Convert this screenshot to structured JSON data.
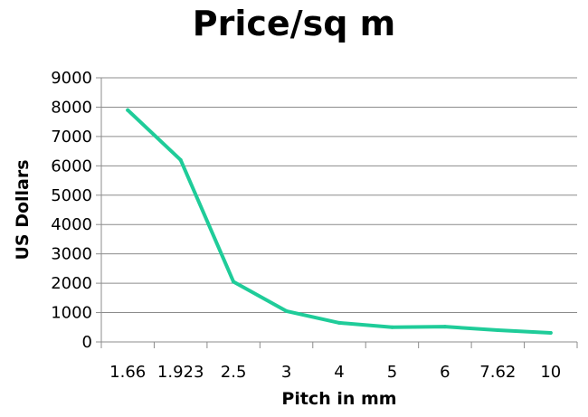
{
  "chart_data": {
    "type": "line",
    "title": "Price/sq m",
    "xlabel": "Pitch in mm",
    "ylabel": "US Dollars",
    "categories": [
      "1.66",
      "1.923",
      "2.5",
      "3",
      "4",
      "5",
      "6",
      "7.62",
      "10"
    ],
    "series": [
      {
        "values": [
          7900,
          6200,
          2050,
          1050,
          650,
          500,
          520,
          400,
          310
        ]
      }
    ],
    "ylim": [
      0,
      9000
    ],
    "yticks": [
      "0",
      "1000",
      "2000",
      "3000",
      "4000",
      "5000",
      "6000",
      "7000",
      "8000",
      "9000"
    ],
    "grid": true,
    "line_color": "#1fcc99",
    "grid_color": "#8c8c8c"
  }
}
